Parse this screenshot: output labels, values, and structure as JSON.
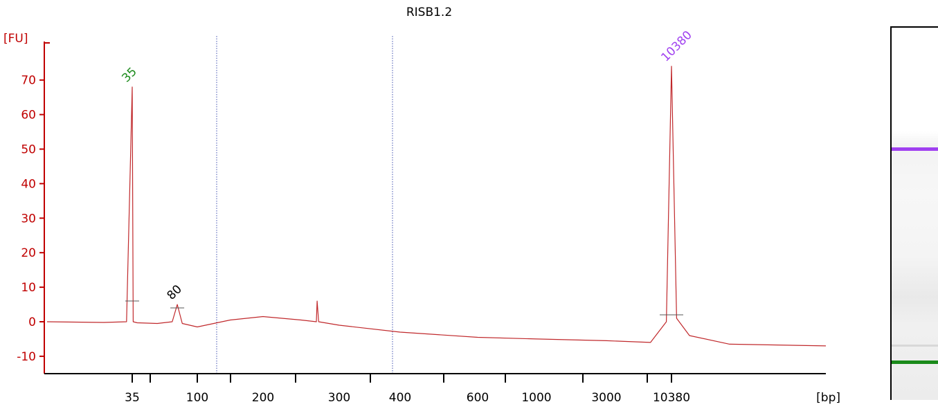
{
  "title": "RISB1.2",
  "chart_data": {
    "type": "line",
    "title": "RISB1.2",
    "ylabel": "[FU]",
    "xlabel": "[bp]",
    "ylim": [
      -15,
      80
    ],
    "yticks": [
      -10,
      0,
      10,
      20,
      30,
      40,
      50,
      60,
      70
    ],
    "x_scale": "non-linear (electropherogram, migration time)",
    "x_tick_labels": [
      "35",
      "100",
      "200",
      "300",
      "400",
      "600",
      "1000",
      "3000",
      "10380"
    ],
    "grid": false,
    "line_color": "#c0282b",
    "series": [
      {
        "x_bp": [
          20,
          30,
          34,
          35,
          36,
          40,
          60,
          75,
          80,
          85,
          100,
          150,
          200,
          250,
          270,
          271,
          273,
          300,
          400,
          600,
          1000,
          3000,
          8000,
          9800,
          10380,
          10700,
          11500,
          14000,
          20000
        ],
        "y_fu": [
          0,
          -0.2,
          0,
          68,
          0,
          -0.3,
          -0.5,
          0,
          5,
          -0.5,
          -1.5,
          0.5,
          1.5,
          0.5,
          0,
          6,
          0,
          -1,
          -3,
          -4.5,
          -5,
          -5.5,
          -6,
          0,
          74,
          1,
          -4,
          -6.5,
          -7
        ]
      }
    ],
    "peaks": [
      {
        "label": "35",
        "size_bp": 35,
        "fu": 68,
        "color": "#1a8a1a"
      },
      {
        "label": "80",
        "size_bp": 80,
        "fu": 5,
        "color": "#000000"
      },
      {
        "label": "10380",
        "size_bp": 10380,
        "fu": 74,
        "color": "#a040f0"
      }
    ]
  },
  "gel": {
    "bands": [
      {
        "label": "10380",
        "color": "#a040f0"
      },
      {
        "label": "35",
        "color": "#1a8a1a"
      }
    ]
  }
}
